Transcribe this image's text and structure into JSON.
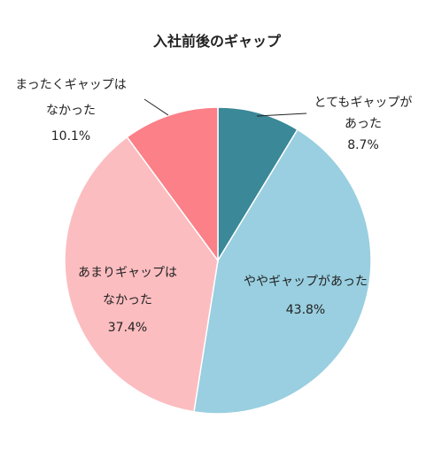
{
  "chart_data": {
    "type": "pie",
    "title": "入社前後のギャップ",
    "start_angle_deg": 0,
    "direction": "clockwise",
    "legend": "none",
    "slices": [
      {
        "name": "とてもギャップがあった",
        "value": 8.7,
        "value_label": "8.7%",
        "label_lines": [
          "とてもギャップが",
          "あった"
        ],
        "color": "#3a8898"
      },
      {
        "name": "ややギャップがあった",
        "value": 43.8,
        "value_label": "43.8%",
        "label_lines": [
          "ややギャップがあった"
        ],
        "color": "#99cfe0"
      },
      {
        "name": "あまりギャップはなかった",
        "value": 37.4,
        "value_label": "37.4%",
        "label_lines": [
          "あまりギャップは",
          "なかった"
        ],
        "color": "#fcbdc0"
      },
      {
        "name": "まったくギャップはなかった",
        "value": 10.1,
        "value_label": "10.1%",
        "label_lines": [
          "まったくギャップは",
          "なかった"
        ],
        "color": "#fb8088"
      }
    ]
  }
}
